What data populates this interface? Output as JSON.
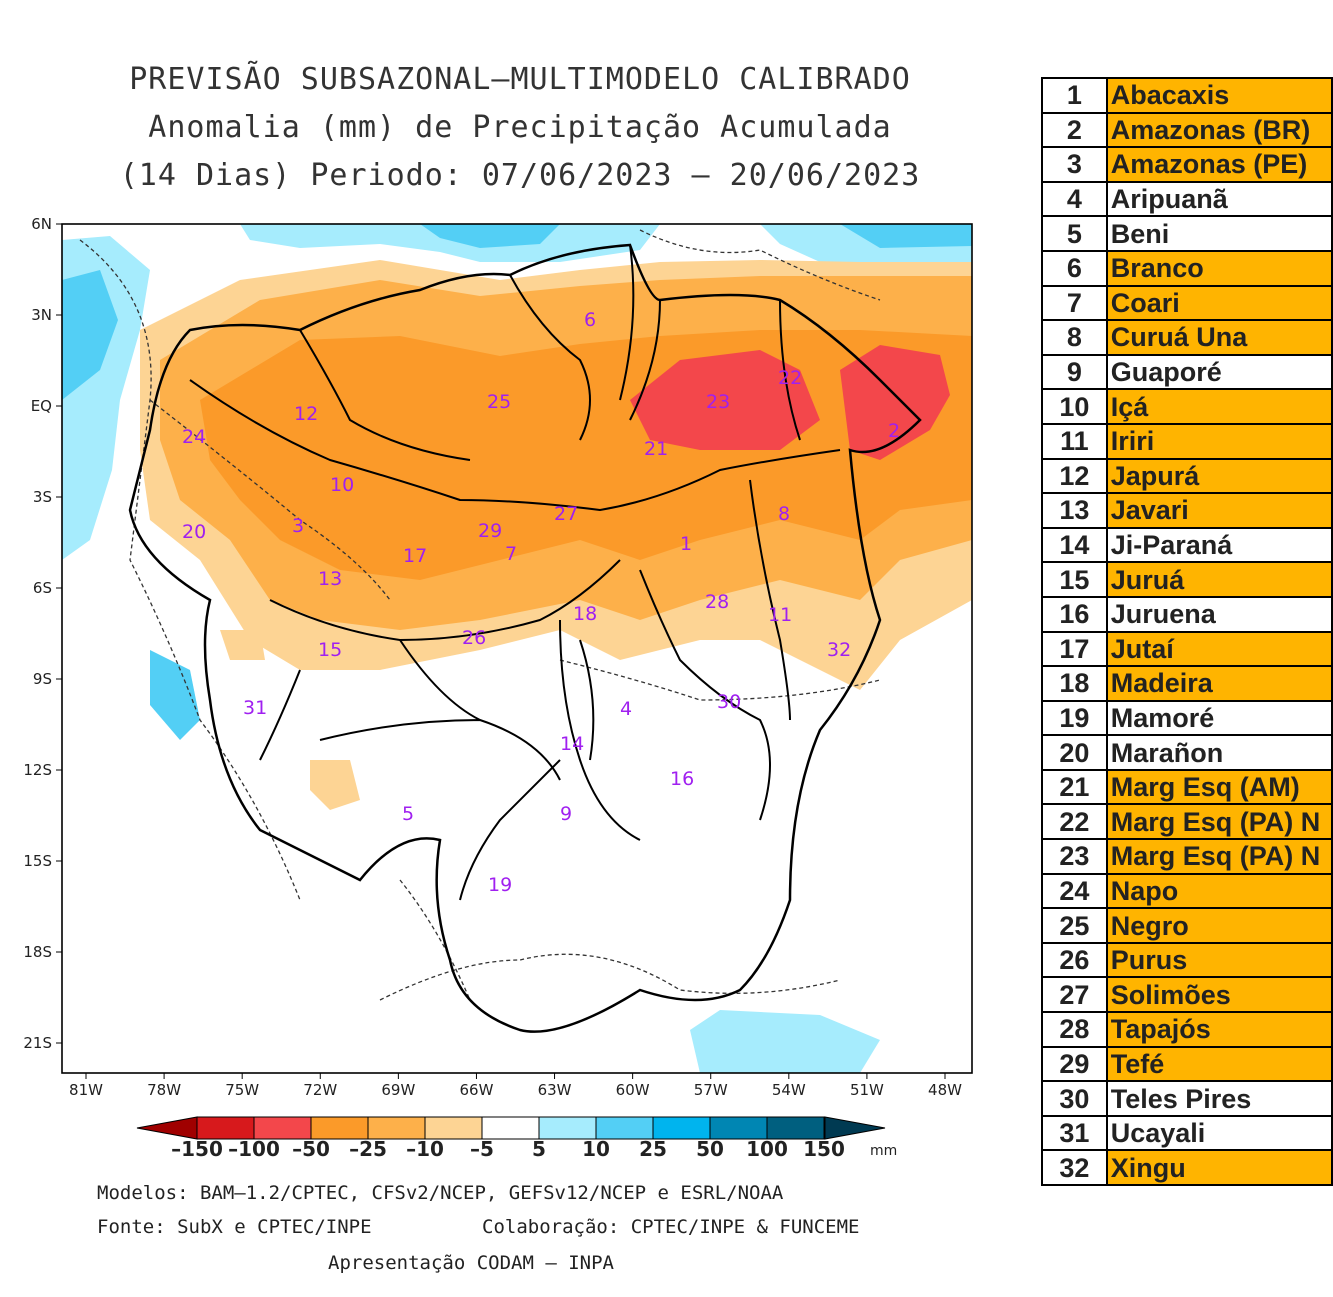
{
  "title": {
    "line1": "PREVISÃO SUBSAZONAL–MULTIMODELO CALIBRADO",
    "line2": "Anomalia (mm) de Precipitação Acumulada",
    "line3": "(14 Dias) Periodo: 07/06/2023 – 20/06/2023"
  },
  "map": {
    "lat_labels": [
      "6N",
      "3N",
      "EQ",
      "3S",
      "6S",
      "9S",
      "12S",
      "15S",
      "18S",
      "21S"
    ],
    "lon_labels": [
      "81W",
      "78W",
      "75W",
      "72W",
      "69W",
      "66W",
      "63W",
      "60W",
      "57W",
      "54W",
      "51W",
      "48W"
    ],
    "basin_labels": [
      "1",
      "2",
      "3",
      "4",
      "5",
      "6",
      "7",
      "8",
      "9",
      "10",
      "11",
      "12",
      "13",
      "14",
      "15",
      "16",
      "17",
      "18",
      "19",
      "20",
      "21",
      "22",
      "23",
      "24",
      "25",
      "26",
      "27",
      "28",
      "29",
      "30",
      "31",
      "32"
    ]
  },
  "legend": {
    "labels": [
      "–150",
      "–100",
      "–50",
      "–25",
      "–10",
      "–5",
      "5",
      "10",
      "25",
      "50",
      "100",
      "150"
    ],
    "unit": "mm",
    "colors": [
      "#d7191c",
      "#f3474b",
      "#fb9a29",
      "#fdb04a",
      "#fdd494",
      "#ffffff",
      "#a6ecfd",
      "#53cff5",
      "#00b4ee",
      "#0086b3",
      "#005f7f"
    ],
    "low_tip": "#a00000",
    "high_tip": "#003a52"
  },
  "credits": {
    "models": "Modelos: BAM–1.2/CPTEC, CFSv2/NCEP, GEFSv12/NCEP e ESRL/NOAA",
    "source": "Fonte: SubX e CPTEC/INPE",
    "collab": "Colaboração: CPTEC/INPE & FUNCEME",
    "presentation": "Apresentação CODAM – INPA"
  },
  "basins_table": [
    {
      "num": "1",
      "name": "Abacaxis",
      "highlight": true
    },
    {
      "num": "2",
      "name": "Amazonas (BR)",
      "highlight": true
    },
    {
      "num": "3",
      "name": "Amazonas (PE)",
      "highlight": true
    },
    {
      "num": "4",
      "name": "Aripuanã",
      "highlight": false
    },
    {
      "num": "5",
      "name": "Beni",
      "highlight": false
    },
    {
      "num": "6",
      "name": "Branco",
      "highlight": true
    },
    {
      "num": "7",
      "name": "Coari",
      "highlight": true
    },
    {
      "num": "8",
      "name": "Curuá Una",
      "highlight": true
    },
    {
      "num": "9",
      "name": "Guaporé",
      "highlight": false
    },
    {
      "num": "10",
      "name": "Içá",
      "highlight": true
    },
    {
      "num": "11",
      "name": "Iriri",
      "highlight": true
    },
    {
      "num": "12",
      "name": "Japurá",
      "highlight": true
    },
    {
      "num": "13",
      "name": "Javari",
      "highlight": true
    },
    {
      "num": "14",
      "name": "Ji-Paraná",
      "highlight": false
    },
    {
      "num": "15",
      "name": "Juruá",
      "highlight": true
    },
    {
      "num": "16",
      "name": "Juruena",
      "highlight": false
    },
    {
      "num": "17",
      "name": "Jutaí",
      "highlight": true
    },
    {
      "num": "18",
      "name": "Madeira",
      "highlight": true
    },
    {
      "num": "19",
      "name": "Mamoré",
      "highlight": false
    },
    {
      "num": "20",
      "name": "Marañon",
      "highlight": false
    },
    {
      "num": "21",
      "name": "Marg Esq (AM)",
      "highlight": true
    },
    {
      "num": "22",
      "name": "Marg Esq (PA) N",
      "highlight": true
    },
    {
      "num": "23",
      "name": "Marg Esq (PA) N",
      "highlight": true
    },
    {
      "num": "24",
      "name": "Napo",
      "highlight": true
    },
    {
      "num": "25",
      "name": "Negro",
      "highlight": true
    },
    {
      "num": "26",
      "name": "Purus",
      "highlight": true
    },
    {
      "num": "27",
      "name": "Solimões",
      "highlight": true
    },
    {
      "num": "28",
      "name": "Tapajós",
      "highlight": true
    },
    {
      "num": "29",
      "name": "Tefé",
      "highlight": true
    },
    {
      "num": "30",
      "name": "Teles Pires",
      "highlight": false
    },
    {
      "num": "31",
      "name": "Ucayali",
      "highlight": false
    },
    {
      "num": "32",
      "name": "Xingu",
      "highlight": true
    }
  ]
}
